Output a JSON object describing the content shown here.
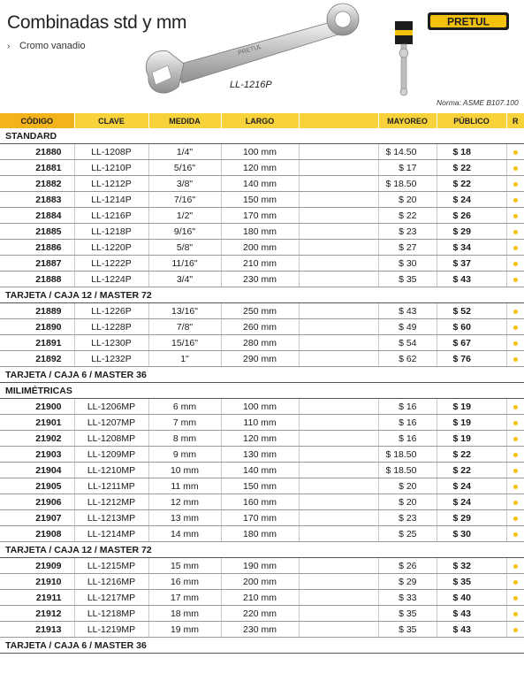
{
  "header": {
    "title": "Combinadas std y mm",
    "subtitle": "Cromo vanadio",
    "model_label": "LL-1216P",
    "norma": "Norma: ASME B107.100",
    "brand": "PRETUL",
    "wrench_text": "PRETUL"
  },
  "colors": {
    "header_bg": "#f7d23a",
    "code_header_bg": "#f2b31b",
    "dot": "#f4c20d"
  },
  "columns": [
    "CÓDIGO",
    "CLAVE",
    "MEDIDA",
    "LARGO",
    "",
    "MAYOREO",
    "PÚBLICO",
    "R"
  ],
  "rows": [
    {
      "type": "section",
      "label": "STANDARD"
    },
    {
      "type": "item",
      "code": "21880",
      "clave": "LL-1208P",
      "medida": "1/4\"",
      "largo": "100 mm",
      "mayoreo": "$ 14.50",
      "publico": "$ 18"
    },
    {
      "type": "item",
      "code": "21881",
      "clave": "LL-1210P",
      "medida": "5/16\"",
      "largo": "120 mm",
      "mayoreo": "$ 17",
      "publico": "$ 22"
    },
    {
      "type": "item",
      "code": "21882",
      "clave": "LL-1212P",
      "medida": "3/8\"",
      "largo": "140 mm",
      "mayoreo": "$ 18.50",
      "publico": "$ 22"
    },
    {
      "type": "item",
      "code": "21883",
      "clave": "LL-1214P",
      "medida": "7/16\"",
      "largo": "150 mm",
      "mayoreo": "$ 20",
      "publico": "$ 24"
    },
    {
      "type": "item",
      "code": "21884",
      "clave": "LL-1216P",
      "medida": "1/2\"",
      "largo": "170 mm",
      "mayoreo": "$ 22",
      "publico": "$ 26"
    },
    {
      "type": "item",
      "code": "21885",
      "clave": "LL-1218P",
      "medida": "9/16\"",
      "largo": "180 mm",
      "mayoreo": "$ 23",
      "publico": "$ 29"
    },
    {
      "type": "item",
      "code": "21886",
      "clave": "LL-1220P",
      "medida": "5/8\"",
      "largo": "200 mm",
      "mayoreo": "$ 27",
      "publico": "$ 34"
    },
    {
      "type": "item",
      "code": "21887",
      "clave": "LL-1222P",
      "medida": "11/16\"",
      "largo": "210 mm",
      "mayoreo": "$ 30",
      "publico": "$ 37"
    },
    {
      "type": "item",
      "code": "21888",
      "clave": "LL-1224P",
      "medida": "3/4\"",
      "largo": "230 mm",
      "mayoreo": "$ 35",
      "publico": "$ 43"
    },
    {
      "type": "section",
      "label": "TARJETA / CAJA 12 / MASTER 72"
    },
    {
      "type": "item",
      "code": "21889",
      "clave": "LL-1226P",
      "medida": "13/16\"",
      "largo": "250 mm",
      "mayoreo": "$ 43",
      "publico": "$ 52"
    },
    {
      "type": "item",
      "code": "21890",
      "clave": "LL-1228P",
      "medida": "7/8\"",
      "largo": "260 mm",
      "mayoreo": "$ 49",
      "publico": "$ 60"
    },
    {
      "type": "item",
      "code": "21891",
      "clave": "LL-1230P",
      "medida": "15/16\"",
      "largo": "280 mm",
      "mayoreo": "$ 54",
      "publico": "$ 67"
    },
    {
      "type": "item",
      "code": "21892",
      "clave": "LL-1232P",
      "medida": "1\"",
      "largo": "290 mm",
      "mayoreo": "$ 62",
      "publico": "$ 76"
    },
    {
      "type": "section",
      "label": "TARJETA / CAJA 6 / MASTER 36"
    },
    {
      "type": "section",
      "label": "MILIMÉTRICAS"
    },
    {
      "type": "item",
      "code": "21900",
      "clave": "LL-1206MP",
      "medida": "6 mm",
      "largo": "100 mm",
      "mayoreo": "$ 16",
      "publico": "$ 19"
    },
    {
      "type": "item",
      "code": "21901",
      "clave": "LL-1207MP",
      "medida": "7 mm",
      "largo": "110 mm",
      "mayoreo": "$ 16",
      "publico": "$ 19"
    },
    {
      "type": "item",
      "code": "21902",
      "clave": "LL-1208MP",
      "medida": "8 mm",
      "largo": "120 mm",
      "mayoreo": "$ 16",
      "publico": "$ 19"
    },
    {
      "type": "item",
      "code": "21903",
      "clave": "LL-1209MP",
      "medida": "9 mm",
      "largo": "130 mm",
      "mayoreo": "$ 18.50",
      "publico": "$ 22"
    },
    {
      "type": "item",
      "code": "21904",
      "clave": "LL-1210MP",
      "medida": "10 mm",
      "largo": "140 mm",
      "mayoreo": "$ 18.50",
      "publico": "$ 22"
    },
    {
      "type": "item",
      "code": "21905",
      "clave": "LL-1211MP",
      "medida": "11 mm",
      "largo": "150 mm",
      "mayoreo": "$ 20",
      "publico": "$ 24"
    },
    {
      "type": "item",
      "code": "21906",
      "clave": "LL-1212MP",
      "medida": "12 mm",
      "largo": "160 mm",
      "mayoreo": "$ 20",
      "publico": "$ 24"
    },
    {
      "type": "item",
      "code": "21907",
      "clave": "LL-1213MP",
      "medida": "13 mm",
      "largo": "170 mm",
      "mayoreo": "$ 23",
      "publico": "$ 29"
    },
    {
      "type": "item",
      "code": "21908",
      "clave": "LL-1214MP",
      "medida": "14 mm",
      "largo": "180 mm",
      "mayoreo": "$ 25",
      "publico": "$ 30"
    },
    {
      "type": "section",
      "label": "TARJETA / CAJA 12 / MASTER 72"
    },
    {
      "type": "item",
      "code": "21909",
      "clave": "LL-1215MP",
      "medida": "15 mm",
      "largo": "190 mm",
      "mayoreo": "$ 26",
      "publico": "$ 32"
    },
    {
      "type": "item",
      "code": "21910",
      "clave": "LL-1216MP",
      "medida": "16 mm",
      "largo": "200 mm",
      "mayoreo": "$ 29",
      "publico": "$ 35"
    },
    {
      "type": "item",
      "code": "21911",
      "clave": "LL-1217MP",
      "medida": "17 mm",
      "largo": "210 mm",
      "mayoreo": "$ 33",
      "publico": "$ 40"
    },
    {
      "type": "item",
      "code": "21912",
      "clave": "LL-1218MP",
      "medida": "18 mm",
      "largo": "220 mm",
      "mayoreo": "$ 35",
      "publico": "$ 43"
    },
    {
      "type": "item",
      "code": "21913",
      "clave": "LL-1219MP",
      "medida": "19 mm",
      "largo": "230 mm",
      "mayoreo": "$ 35",
      "publico": "$ 43"
    },
    {
      "type": "section",
      "label": "TARJETA / CAJA 6 / MASTER 36"
    }
  ]
}
